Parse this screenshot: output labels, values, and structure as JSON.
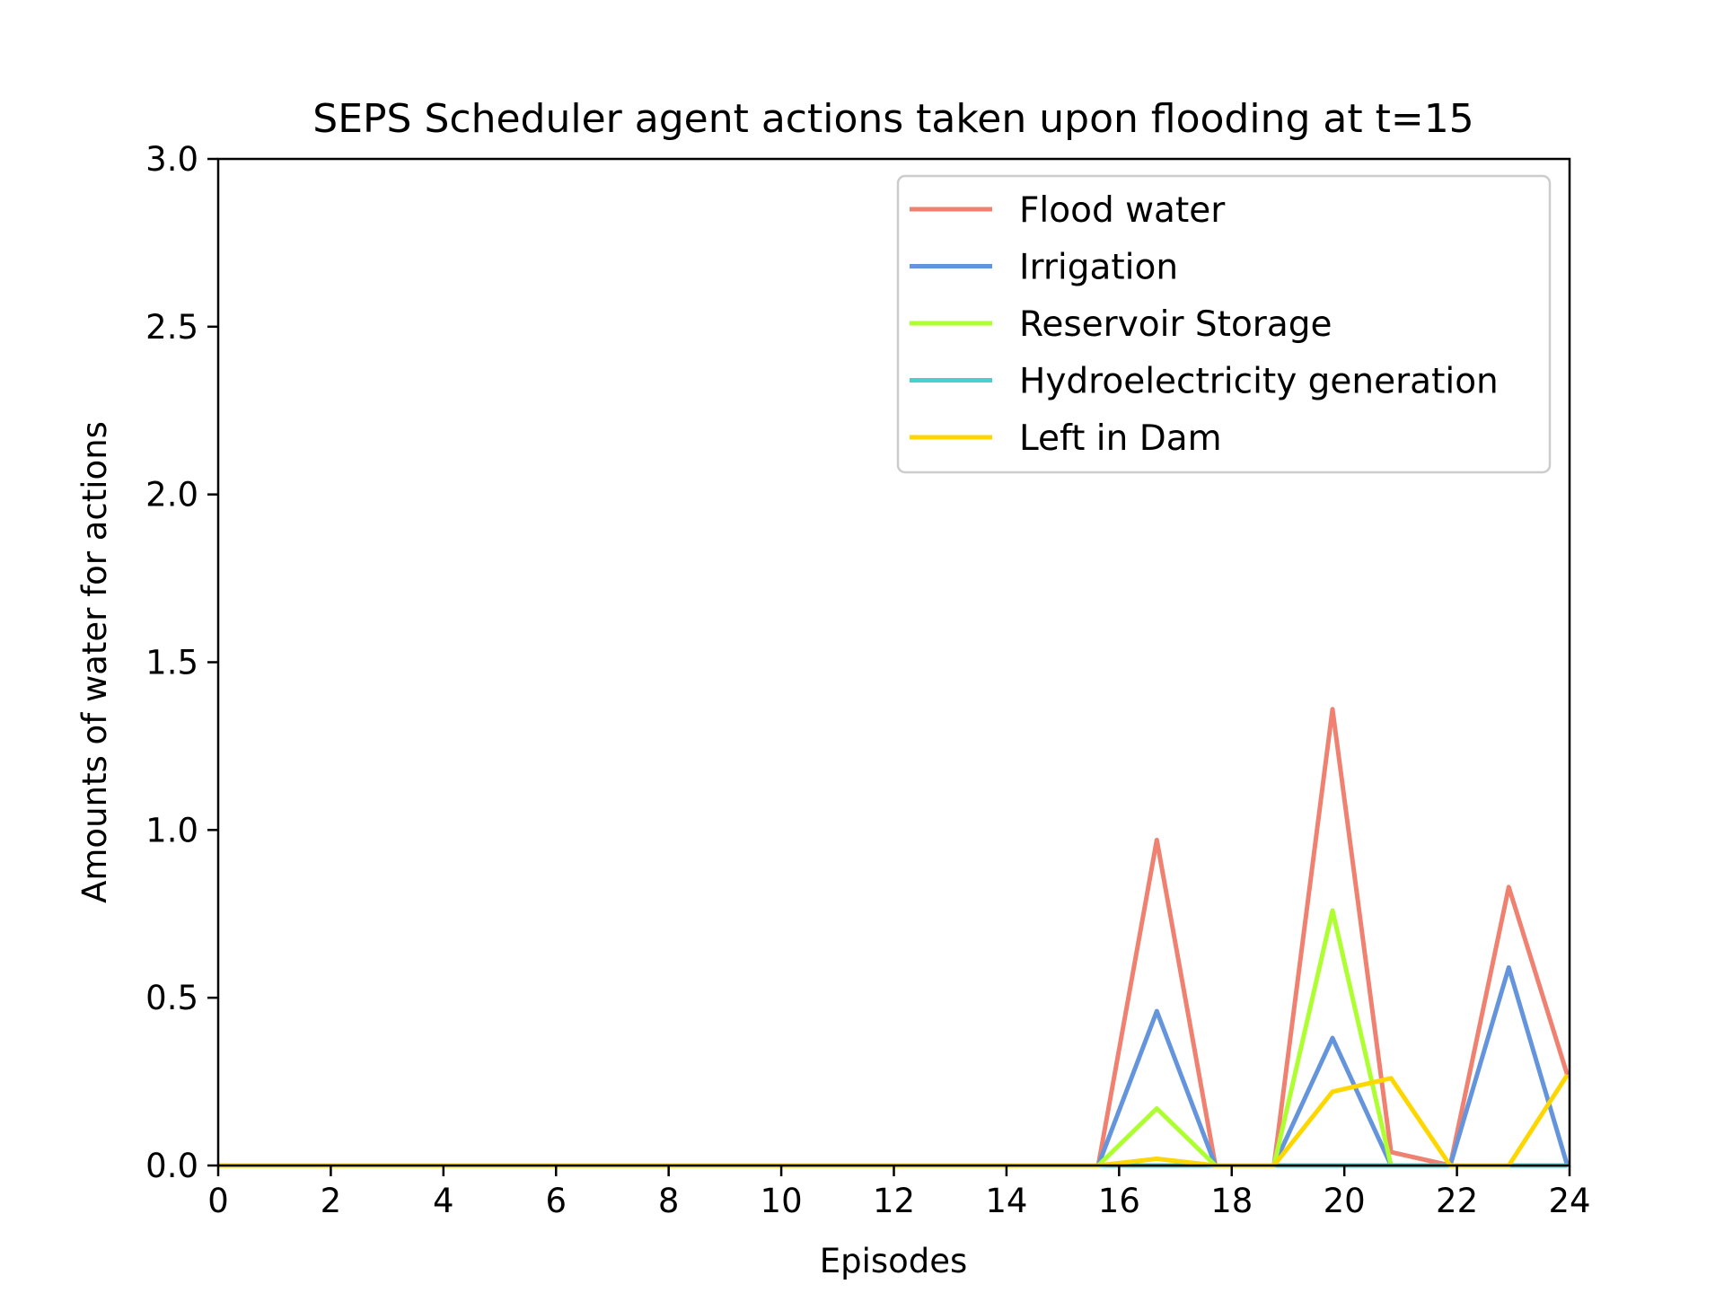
{
  "chart_data": {
    "type": "line",
    "title": "SEPS Scheduler agent actions taken upon flooding at t=15",
    "xlabel": "Episodes",
    "ylabel": "Amounts of water for actions",
    "xlim": [
      0,
      24
    ],
    "ylim": [
      0,
      3
    ],
    "xticks": [
      "0",
      "2",
      "4",
      "6",
      "8",
      "10",
      "12",
      "14",
      "16",
      "18",
      "20",
      "22",
      "24"
    ],
    "yticks": [
      "0.0",
      "0.5",
      "1.0",
      "1.5",
      "2.0",
      "2.5",
      "3.0"
    ],
    "grid": false,
    "legend_position": "top-right",
    "x": [
      0,
      1.04,
      2.08,
      3.13,
      4.17,
      5.21,
      6.25,
      7.29,
      8.33,
      9.38,
      10.42,
      11.46,
      12.5,
      13.54,
      14.58,
      15.63,
      16.67,
      17.71,
      18.75,
      19.79,
      20.83,
      21.88,
      22.92,
      23.96
    ],
    "series": [
      {
        "name": "Flood water",
        "color": "#f08070",
        "values": [
          0,
          0,
          0,
          0,
          0,
          0,
          0,
          0,
          0,
          0,
          0,
          0,
          0,
          0,
          0,
          0,
          0.97,
          0,
          0,
          1.36,
          0.04,
          0,
          0.83,
          0.27
        ]
      },
      {
        "name": "Irrigation",
        "color": "#6495dc",
        "values": [
          0,
          0,
          0,
          0,
          0,
          0,
          0,
          0,
          0,
          0,
          0,
          0,
          0,
          0,
          0,
          0,
          0.46,
          0,
          0,
          0.38,
          0,
          0,
          0.59,
          0
        ]
      },
      {
        "name": "Reservoir Storage",
        "color": "#adff2f",
        "values": [
          0,
          0,
          0,
          0,
          0,
          0,
          0,
          0,
          0,
          0,
          0,
          0,
          0,
          0,
          0,
          0,
          0.17,
          0,
          0,
          0.76,
          0,
          0,
          0,
          0
        ]
      },
      {
        "name": "Hydroelectricity generation",
        "color": "#48d1cc",
        "values": [
          0,
          0,
          0,
          0,
          0,
          0,
          0,
          0,
          0,
          0,
          0,
          0,
          0,
          0,
          0,
          0,
          0,
          0,
          0,
          0,
          0,
          0,
          0,
          0
        ]
      },
      {
        "name": "Left in Dam",
        "color": "#ffd700",
        "values": [
          0,
          0,
          0,
          0,
          0,
          0,
          0,
          0,
          0,
          0,
          0,
          0,
          0,
          0,
          0,
          0,
          0.02,
          0,
          0,
          0.22,
          0.26,
          0,
          0,
          0.27
        ]
      }
    ]
  }
}
